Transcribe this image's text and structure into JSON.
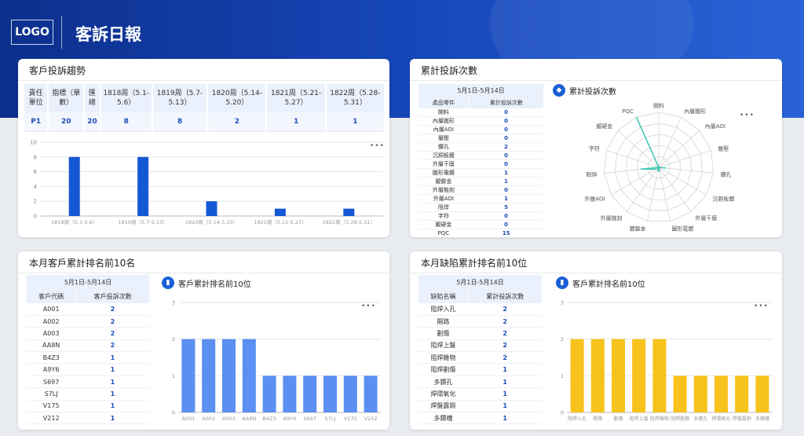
{
  "header": {
    "logo": "LOGO",
    "title": "客訴日報"
  },
  "trend_panel": {
    "title": "客戶投訴趨勢",
    "columns": [
      "責任單位",
      "指標（單數）",
      "匯總",
      "1818周（5.1-5.6）",
      "1819周（5.7-5.13）",
      "1820周（5.14-5.20）",
      "1821周（5.21-5.27）",
      "1822周（5.28-5.31）"
    ],
    "row": [
      "P1",
      "20",
      "20",
      "8",
      "8",
      "2",
      "1",
      "1"
    ],
    "more": "•••"
  },
  "cum_panel": {
    "title": "累計投訴次數",
    "date_range": "5月1日-5月14日",
    "col1": "產品零件",
    "col2": "累計投訴次數",
    "rows": [
      {
        "name": "開料",
        "value": "0"
      },
      {
        "name": "內層圖形",
        "value": "0"
      },
      {
        "name": "內層AOI",
        "value": "0"
      },
      {
        "name": "層壓",
        "value": "0"
      },
      {
        "name": "鑽孔",
        "value": "2"
      },
      {
        "name": "沉銅板鍍",
        "value": "0"
      },
      {
        "name": "外層干膜",
        "value": "0"
      },
      {
        "name": "圖形電鍍",
        "value": "1"
      },
      {
        "name": "鍍鎳金",
        "value": "1"
      },
      {
        "name": "外層蝕刻",
        "value": "0"
      },
      {
        "name": "外層AOI",
        "value": "1"
      },
      {
        "name": "阻焊",
        "value": "5"
      },
      {
        "name": "字符",
        "value": "0"
      },
      {
        "name": "鍍硬金",
        "value": "0"
      },
      {
        "name": "PQC",
        "value": "15"
      }
    ],
    "chart_title": "累計投訴次數",
    "more": "•••"
  },
  "cust_panel": {
    "title": "本月客戶累計排名前10名",
    "date_range": "5月1日-5月14日",
    "col1": "客戶代碼",
    "col2": "客戶投訴次數",
    "rows": [
      {
        "name": "A001",
        "value": "2"
      },
      {
        "name": "A002",
        "value": "2"
      },
      {
        "name": "A003",
        "value": "2"
      },
      {
        "name": "AA8N",
        "value": "2"
      },
      {
        "name": "B4Z3",
        "value": "1"
      },
      {
        "name": "A9Y6",
        "value": "1"
      },
      {
        "name": "S697",
        "value": "1"
      },
      {
        "name": "S7LJ",
        "value": "1"
      },
      {
        "name": "V175",
        "value": "1"
      },
      {
        "name": "V212",
        "value": "1"
      }
    ],
    "chart_title": "客戶累計排名前10位",
    "more": "•••"
  },
  "defect_panel": {
    "title": "本月缺陷累計排名前10位",
    "date_range": "5月1日-5月14日",
    "col1": "缺陷名稱",
    "col2": "累計投訴次數",
    "rows": [
      {
        "name": "阻焊入孔",
        "value": "2"
      },
      {
        "name": "開路",
        "value": "2"
      },
      {
        "name": "劃傷",
        "value": "2"
      },
      {
        "name": "阻焊上盤",
        "value": "2"
      },
      {
        "name": "阻焊雜物",
        "value": "2"
      },
      {
        "name": "阻焊劃傷",
        "value": "1"
      },
      {
        "name": "多鑽孔",
        "value": "1"
      },
      {
        "name": "焊環氧化",
        "value": "1"
      },
      {
        "name": "焊盤露銅",
        "value": "1"
      },
      {
        "name": "多鑽槽",
        "value": "1"
      }
    ],
    "chart_title": "客戶累計排名前10位",
    "more": "•••"
  },
  "chart_data": [
    {
      "type": "bar",
      "categories": [
        "1818周（5.1-5.6）",
        "1819周（5.7-5.13）",
        "1820周（5.14-5.20）",
        "1821周（5.21-5.27）",
        "1822周（5.28-5.31）"
      ],
      "values": [
        8,
        8,
        2,
        1,
        1
      ],
      "ylim": [
        0,
        10
      ],
      "yticks": [
        0,
        2,
        4,
        6,
        8,
        10
      ],
      "color": "#1558d6",
      "grid": true
    },
    {
      "type": "radar",
      "categories": [
        "開料",
        "內層圖形",
        "內層AOI",
        "層壓",
        "鑽孔",
        "沉銅板鍍",
        "外層干膜",
        "圖形電鍍",
        "鍍鎳金",
        "外層蝕刻",
        "外層AOI",
        "阻焊",
        "字符",
        "鍍硬金",
        "PQC"
      ],
      "values": [
        0,
        0,
        0,
        0,
        2,
        0,
        0,
        1,
        1,
        0,
        1,
        5,
        0,
        0,
        15
      ],
      "max": 15,
      "color": "#3ec7b2"
    },
    {
      "type": "bar",
      "categories": [
        "A001",
        "A002",
        "A003",
        "AA8N",
        "B4Z3",
        "A9Y6",
        "S697",
        "S7LJ",
        "V175",
        "V212"
      ],
      "values": [
        2,
        2,
        2,
        2,
        1,
        1,
        1,
        1,
        1,
        1
      ],
      "ylim": [
        0,
        3
      ],
      "yticks": [
        0,
        1,
        2,
        3
      ],
      "color": "#5b8ff2",
      "grid": true
    },
    {
      "type": "bar",
      "categories": [
        "阻焊入孔",
        "開路",
        "劃傷",
        "阻焊上盤",
        "阻焊雜物",
        "阻焊劃傷",
        "多鑽孔",
        "焊環氧化",
        "焊盤露銅",
        "多鑽槽"
      ],
      "values": [
        2,
        2,
        2,
        2,
        2,
        1,
        1,
        1,
        1,
        1
      ],
      "ylim": [
        0,
        3
      ],
      "yticks": [
        0,
        1,
        2,
        3
      ],
      "color": "#f7c21c",
      "grid": true
    }
  ]
}
